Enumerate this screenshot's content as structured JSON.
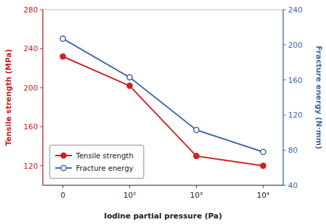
{
  "chart_data": {
    "type": "line",
    "x_label": "Iodine partial pressure (Pa)",
    "y_label": "Tensile strength (MPa)",
    "y2_label": "Fracture energy (N·mm)",
    "categories": [
      "0",
      "10²",
      "10³",
      "10⁴"
    ],
    "series": [
      {
        "name": "Tensile strength",
        "color": "#cc2222",
        "marker": "circle",
        "values": [
          232,
          202,
          130,
          120
        ]
      },
      {
        "name": "Fracture energy",
        "color": "#4466aa",
        "marker": "circle",
        "axis": "y2",
        "values": [
          207,
          163,
          103,
          78
        ]
      }
    ],
    "ylim": [
      100,
      280
    ],
    "yticks": [
      120,
      160,
      200,
      240,
      280
    ],
    "y2lim": [
      40,
      240
    ],
    "y2ticks": [
      40,
      80,
      120,
      160,
      200,
      240
    ],
    "grid": false,
    "legend": "lower left"
  }
}
